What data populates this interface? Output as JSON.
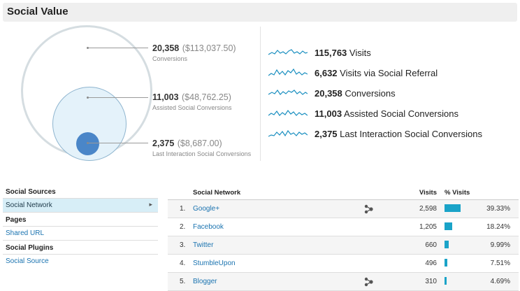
{
  "header": {
    "title": "Social Value"
  },
  "summary": {
    "conversions": {
      "num": "20,358",
      "money": "($113,037.50)",
      "label": "Conversions"
    },
    "assisted": {
      "num": "11,003",
      "money": "($48,762.25)",
      "label": "Assisted Social Conversions"
    },
    "last": {
      "num": "2,375",
      "money": "($8,687.00)",
      "label": "Last Interaction Social Conversions"
    }
  },
  "metrics": [
    {
      "num": "115,763",
      "label": "Visits"
    },
    {
      "num": "6,632",
      "label": "Visits via Social Referral"
    },
    {
      "num": "20,358",
      "label": "Conversions"
    },
    {
      "num": "11,003",
      "label": "Assisted Social Conversions"
    },
    {
      "num": "2,375",
      "label": "Last Interaction Social Conversions"
    }
  ],
  "nav": {
    "sources_heading": "Social Sources",
    "social_network": "Social Network",
    "pages_heading": "Pages",
    "shared_url": "Shared URL",
    "plugins_heading": "Social Plugins",
    "social_source": "Social Source"
  },
  "table": {
    "headers": {
      "network": "Social Network",
      "visits": "Visits",
      "pct": "% Visits"
    },
    "rows": [
      {
        "rank": "1.",
        "name": "Google+",
        "visits": "2,598",
        "pct": "39.33%",
        "share": 0.3933
      },
      {
        "rank": "2.",
        "name": "Facebook",
        "visits": "1,205",
        "pct": "18.24%",
        "share": 0.1824
      },
      {
        "rank": "3.",
        "name": "Twitter",
        "visits": "660",
        "pct": "9.99%",
        "share": 0.0999
      },
      {
        "rank": "4.",
        "name": "StumbleUpon",
        "visits": "496",
        "pct": "7.51%",
        "share": 0.0751
      },
      {
        "rank": "5.",
        "name": "Blogger",
        "visits": "310",
        "pct": "4.69%",
        "share": 0.0469
      }
    ]
  },
  "colors": {
    "accent": "#1aa3c8",
    "link": "#1a73b0",
    "inner_circle": "#4a86c8"
  },
  "icons": {
    "hub": "hub-activity-icon",
    "chevron": "chevron-right-icon"
  }
}
